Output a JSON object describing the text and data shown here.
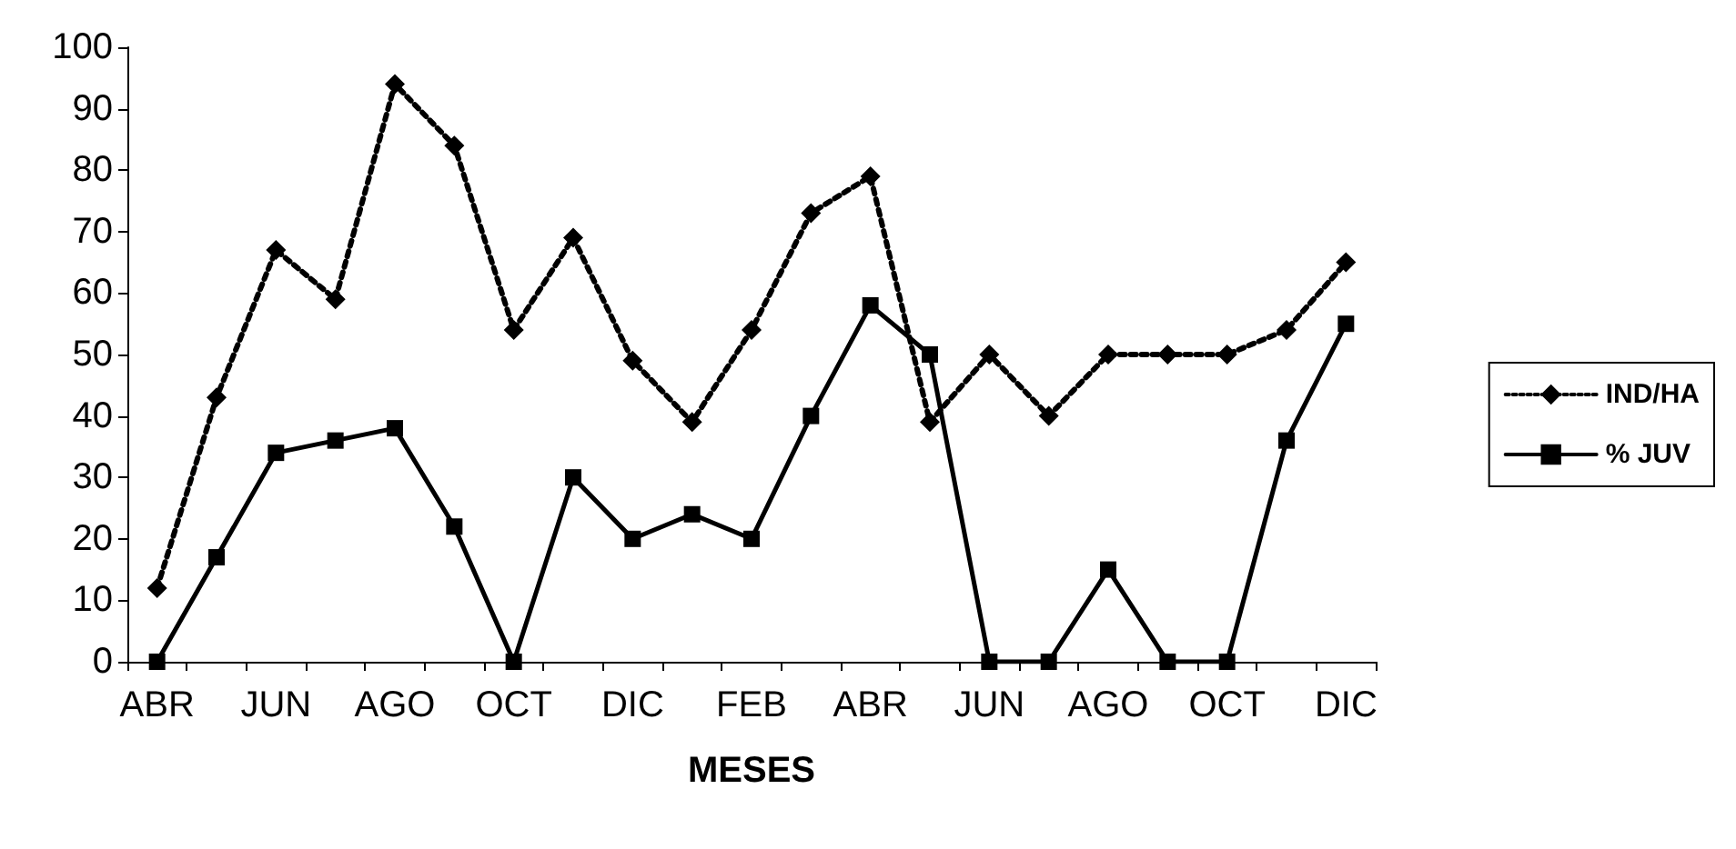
{
  "chart_data": {
    "type": "line",
    "xlabel": "MESES",
    "categories": [
      "ABR",
      null,
      "JUN",
      null,
      "AGO",
      null,
      "OCT",
      null,
      "DIC",
      null,
      "FEB",
      null,
      "ABR",
      null,
      "JUN",
      null,
      "AGO",
      null,
      "OCT",
      null,
      "DIC"
    ],
    "series": [
      {
        "name": "IND/HA",
        "color": "#000000",
        "marker": "diamond",
        "line_style": "dotted",
        "values": [
          12,
          43,
          67,
          59,
          94,
          84,
          54,
          69,
          49,
          39,
          54,
          73,
          79,
          39,
          50,
          40,
          50,
          50,
          50,
          54,
          65
        ]
      },
      {
        "name": "% JUV",
        "color": "#000000",
        "marker": "square",
        "line_style": "solid",
        "values": [
          0,
          17,
          34,
          36,
          38,
          22,
          0,
          30,
          20,
          24,
          20,
          40,
          58,
          50,
          0,
          0,
          15,
          0,
          0,
          36,
          55
        ]
      }
    ],
    "ylim": [
      0,
      100
    ],
    "yticks": [
      0,
      10,
      20,
      30,
      40,
      50,
      60,
      70,
      80,
      90,
      100
    ],
    "grid": false,
    "legend": "right"
  }
}
